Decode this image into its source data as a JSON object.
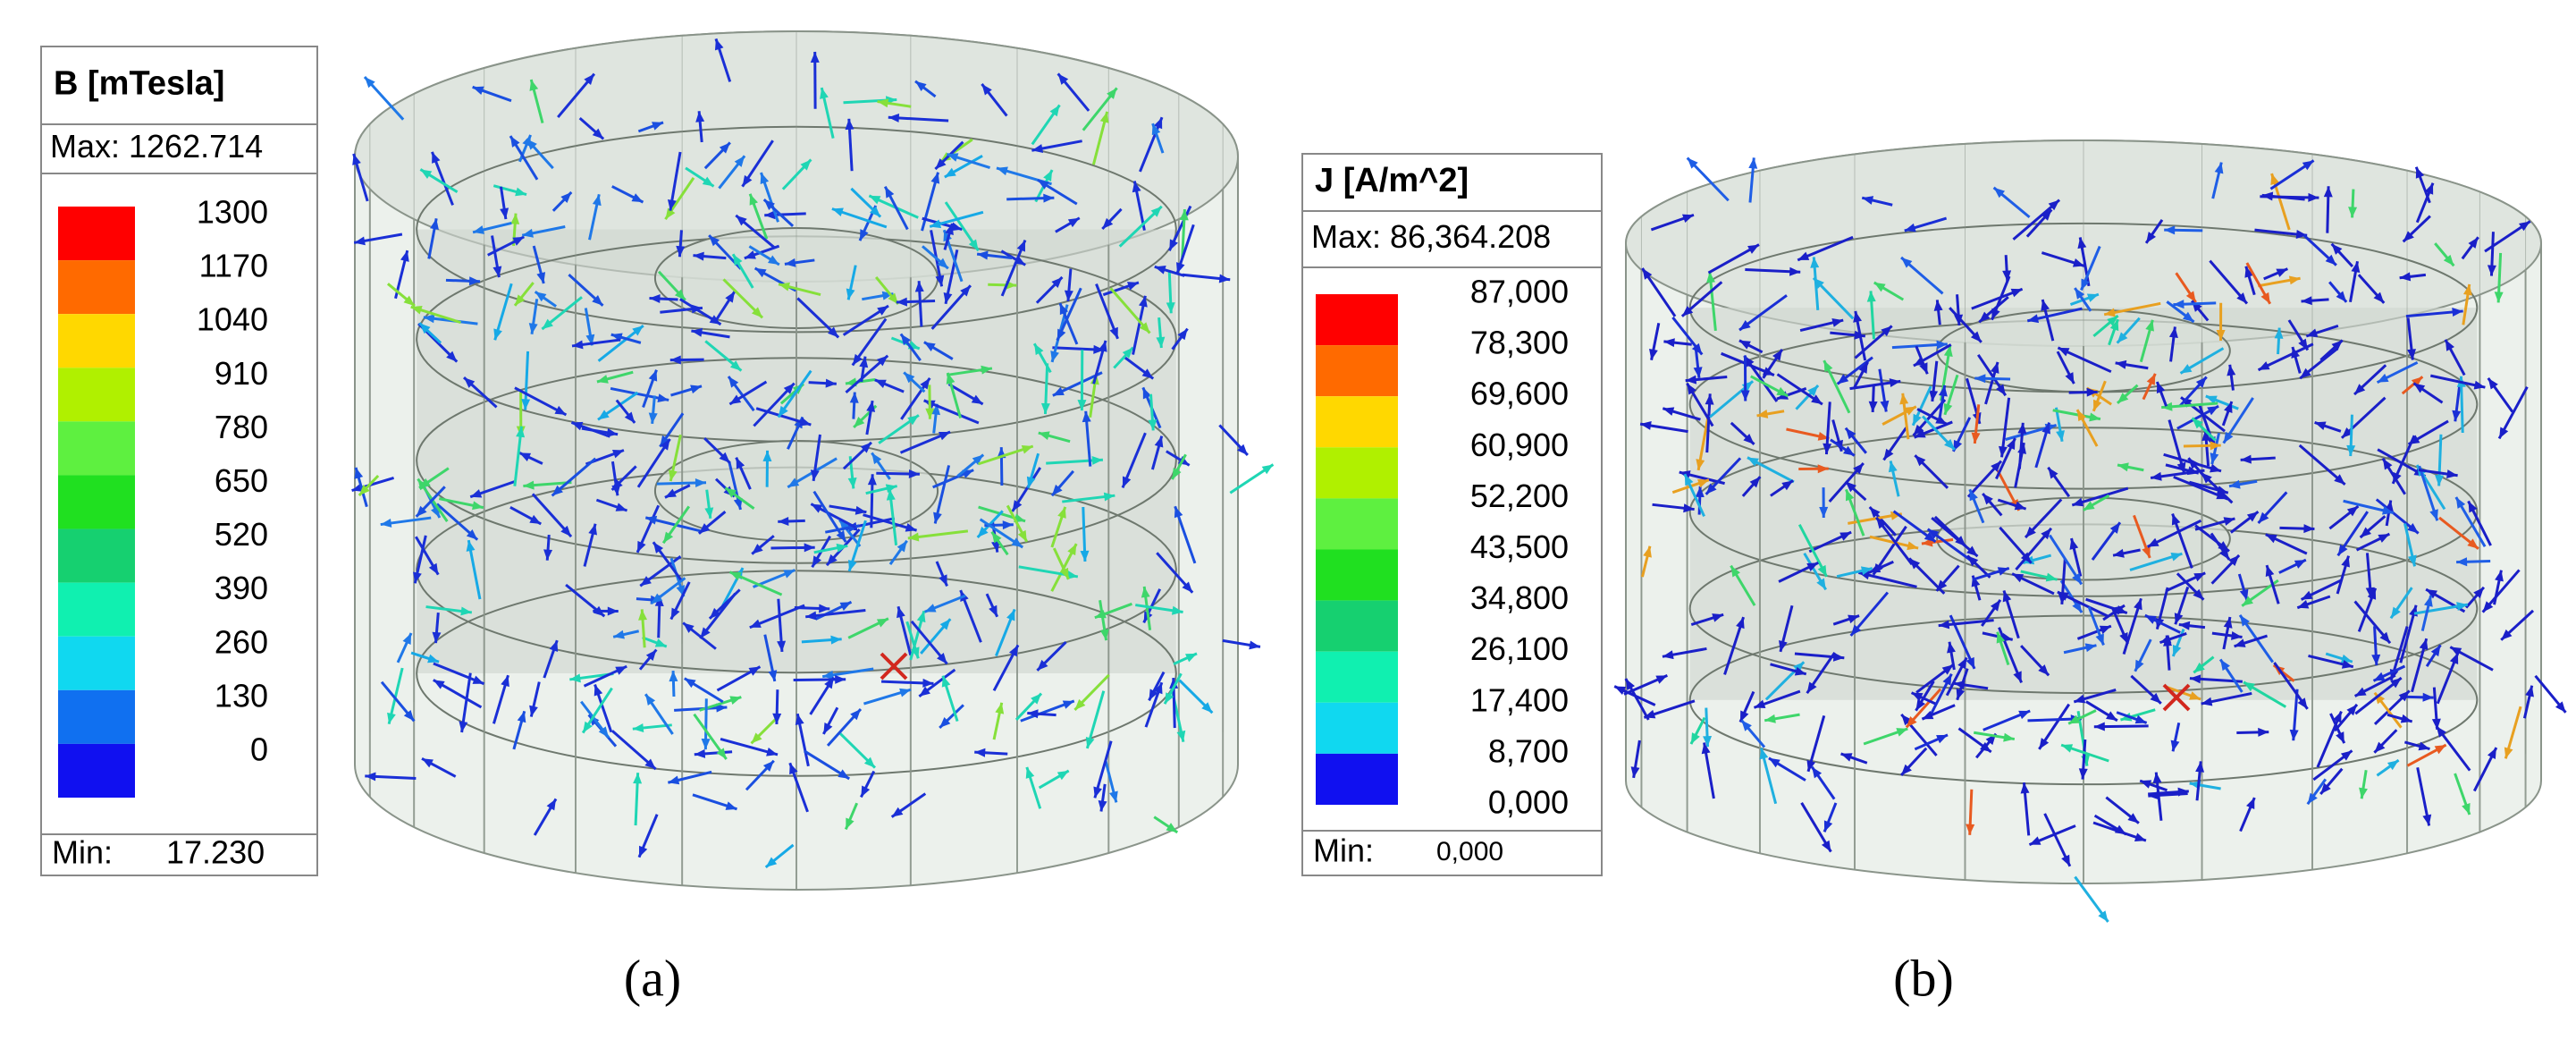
{
  "panels": [
    {
      "legend": {
        "title": "B [mTesla]",
        "max": "Max: 1262.714",
        "ticks": [
          "1300",
          "1170",
          "1040",
          "910",
          "780",
          "650",
          "520",
          "390",
          "260",
          "130",
          "0"
        ],
        "min_label": "Min:",
        "min_value": "17.230"
      },
      "caption": "(a)"
    },
    {
      "legend": {
        "title": "J [A/m^2]",
        "max": "Max: 86,364.208",
        "ticks": [
          "87,000",
          "78,300",
          "69,600",
          "60,900",
          "52,200",
          "43,500",
          "34,800",
          "26,100",
          "17,400",
          "8,700",
          "0,000"
        ],
        "min_label": "Min:",
        "min_value": "0,000"
      },
      "caption": "(b)"
    }
  ]
}
